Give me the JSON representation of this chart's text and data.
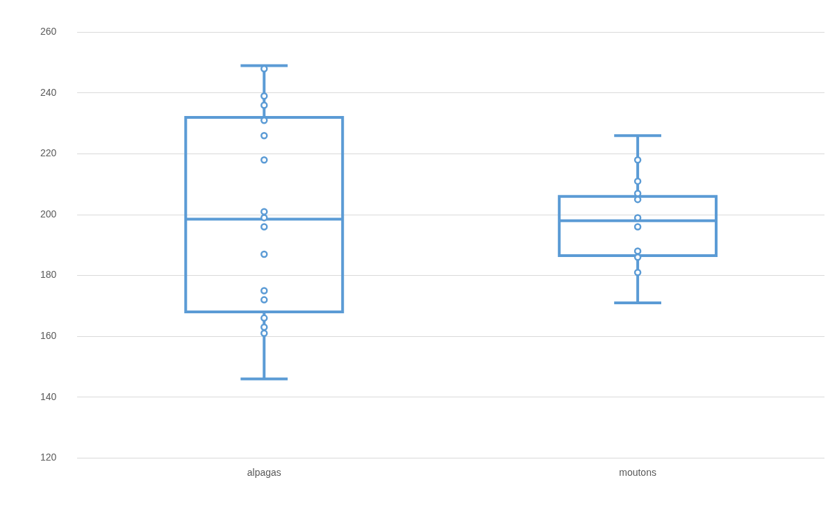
{
  "chart_data": {
    "type": "box",
    "categories": [
      "alpagas",
      "moutons"
    ],
    "series": [
      {
        "type": "box",
        "color": "#5b9bd5",
        "boxes": [
          {
            "low": 146,
            "q1": 168,
            "median": 198.5,
            "q3": 232,
            "high": 249
          },
          {
            "low": 171,
            "q1": 186.5,
            "median": 198,
            "q3": 206,
            "high": 226
          }
        ]
      },
      {
        "type": "scatter",
        "color": "#5b9bd5",
        "x": [
          "alpagas",
          "alpagas",
          "alpagas",
          "alpagas",
          "alpagas",
          "alpagas",
          "alpagas",
          "alpagas",
          "alpagas",
          "alpagas",
          "alpagas",
          "alpagas",
          "alpagas",
          "alpagas",
          "alpagas",
          "moutons",
          "moutons",
          "moutons",
          "moutons",
          "moutons",
          "moutons",
          "moutons",
          "moutons",
          "moutons"
        ],
        "values": [
          248,
          239,
          236,
          231,
          226,
          218,
          201,
          199,
          196,
          187,
          175,
          172,
          166,
          163,
          161,
          218,
          211,
          207,
          205,
          199,
          196,
          188,
          186,
          181
        ]
      }
    ],
    "ylim": [
      120,
      260
    ],
    "yticks": [
      120,
      140,
      160,
      180,
      200,
      220,
      240,
      260
    ],
    "grid": "y",
    "marker": "circle"
  }
}
